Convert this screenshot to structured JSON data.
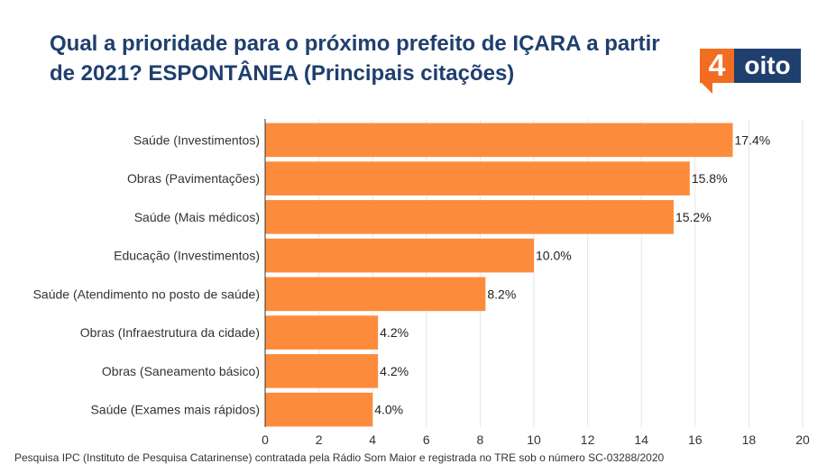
{
  "title": "Qual a prioridade para o próximo prefeito de IÇARA a partir de 2021? ESPONTÂNEA (Principais citações)",
  "logo": {
    "number": "4",
    "text": "oito"
  },
  "footer": "Pesquisa IPC (Instituto de Pesquisa Catarinense) contratada pela Rádio Som Maior e registrada no TRE sob o número SC-03288/2020",
  "colors": {
    "bar": "#fc8c3c",
    "title": "#1f3f6e",
    "grid": "#e6e6e6"
  },
  "chart_data": {
    "type": "bar",
    "orientation": "horizontal",
    "categories": [
      "Saúde (Investimentos)",
      "Obras (Pavimentações)",
      "Saúde (Mais médicos)",
      "Educação (Investimentos)",
      "Saúde (Atendimento no posto de saúde)",
      "Obras (Infraestrutura da cidade)",
      "Obras (Saneamento básico)",
      "Saúde (Exames mais rápidos)"
    ],
    "values": [
      17.4,
      15.8,
      15.2,
      10.0,
      8.2,
      4.2,
      4.2,
      4.0
    ],
    "data_labels": [
      "17.4%",
      "15.8%",
      "15.2%",
      "10.0%",
      "8.2%",
      "4.2%",
      "4.2%",
      "4.0%"
    ],
    "xlim": [
      0,
      20
    ],
    "xticks": [
      0,
      2,
      4,
      6,
      8,
      10,
      12,
      14,
      16,
      18,
      20
    ],
    "grid": true
  }
}
